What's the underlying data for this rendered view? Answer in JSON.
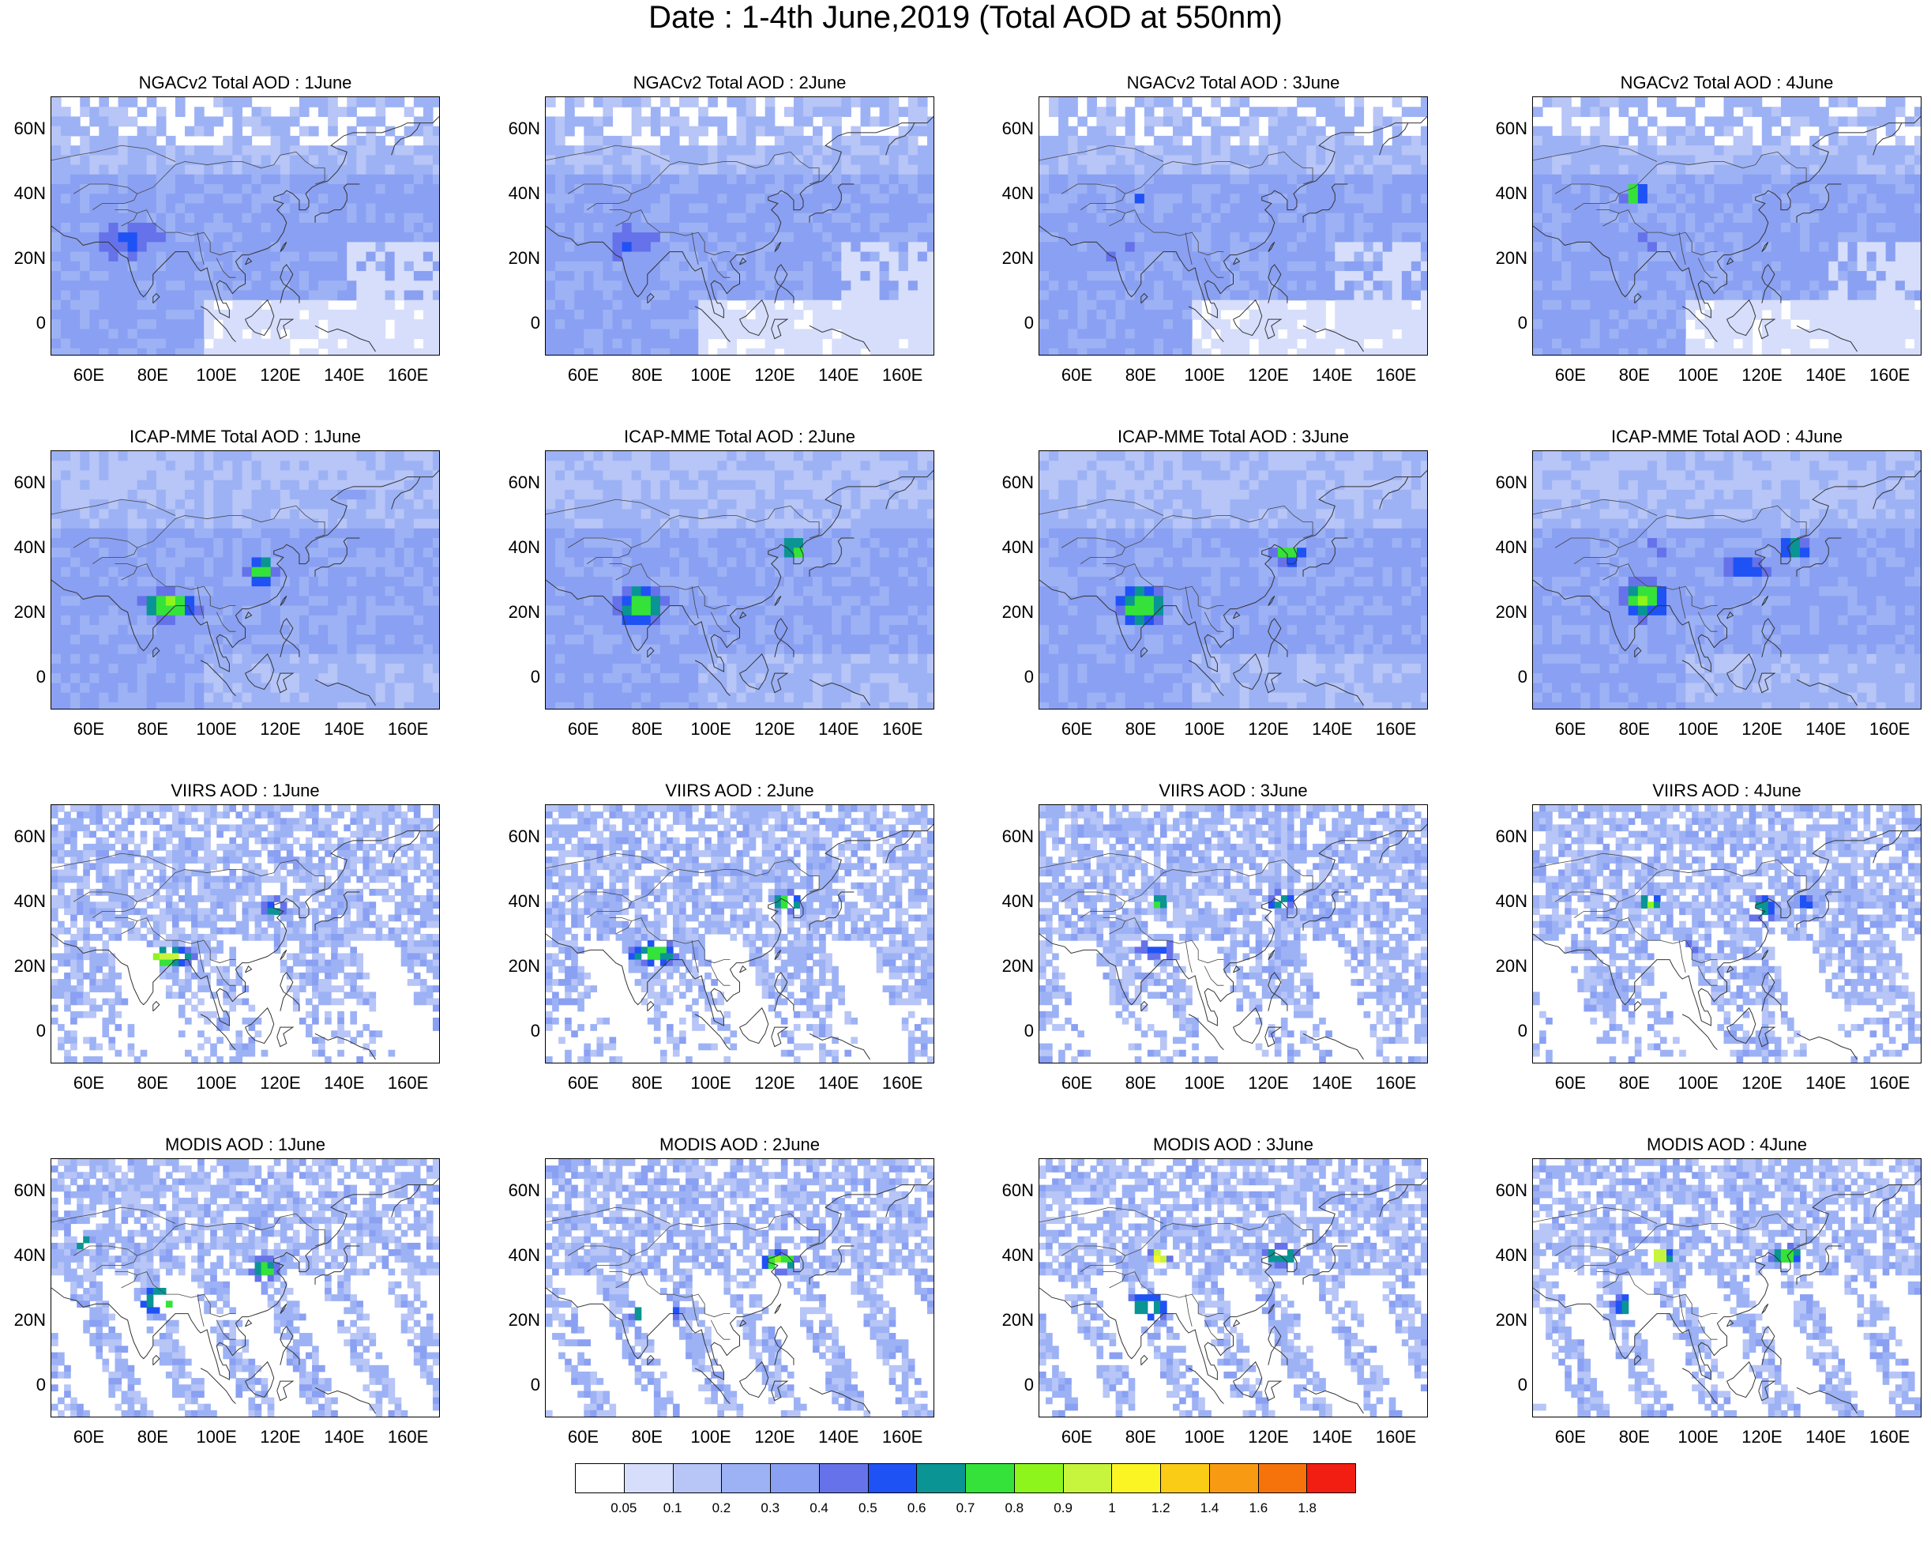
{
  "title": "Date : 1-4th June,2019 (Total AOD at 550nm)",
  "map_panel": {
    "lat_labels": [
      "60N",
      "40N",
      "20N",
      "0"
    ],
    "lon_labels": [
      "60E",
      "80E",
      "100E",
      "120E",
      "140E",
      "160E"
    ],
    "lat_ticks": [
      60,
      40,
      20,
      0
    ],
    "lon_ticks": [
      60,
      80,
      100,
      120,
      140,
      160
    ],
    "lon_range": [
      48,
      170
    ],
    "lat_range": [
      -10,
      70
    ]
  },
  "panels": [
    {
      "title": "NGACv2 Total AOD : 1June",
      "kind": "ngac",
      "day": 1
    },
    {
      "title": "NGACv2 Total AOD : 2June",
      "kind": "ngac",
      "day": 2
    },
    {
      "title": "NGACv2 Total AOD : 3June",
      "kind": "ngac",
      "day": 3
    },
    {
      "title": "NGACv2 Total AOD : 4June",
      "kind": "ngac",
      "day": 4
    },
    {
      "title": "ICAP-MME Total AOD : 1June",
      "kind": "icap",
      "day": 1
    },
    {
      "title": "ICAP-MME Total AOD : 2June",
      "kind": "icap",
      "day": 2
    },
    {
      "title": "ICAP-MME Total AOD : 3June",
      "kind": "icap",
      "day": 3
    },
    {
      "title": "ICAP-MME Total AOD : 4June",
      "kind": "icap",
      "day": 4
    },
    {
      "title": "VIIRS AOD : 1June",
      "kind": "viirs",
      "day": 1
    },
    {
      "title": "VIIRS AOD : 2June",
      "kind": "viirs",
      "day": 2
    },
    {
      "title": "VIIRS AOD : 3June",
      "kind": "viirs",
      "day": 3
    },
    {
      "title": "VIIRS AOD : 4June",
      "kind": "viirs",
      "day": 4
    },
    {
      "title": "MODIS AOD : 1June",
      "kind": "modis",
      "day": 1
    },
    {
      "title": "MODIS AOD : 2June",
      "kind": "modis",
      "day": 2
    },
    {
      "title": "MODIS AOD : 3June",
      "kind": "modis",
      "day": 3
    },
    {
      "title": "MODIS AOD : 4June",
      "kind": "modis",
      "day": 4
    }
  ],
  "colorbar": {
    "labels": [
      "0.05",
      "0.1",
      "0.2",
      "0.3",
      "0.4",
      "0.5",
      "0.6",
      "0.7",
      "0.8",
      "0.9",
      "1",
      "1.2",
      "1.4",
      "1.6",
      "1.8"
    ],
    "colors": [
      "#ffffff",
      "#d6defb",
      "#b7c5f7",
      "#9db2f5",
      "#8aa0f2",
      "#6672e9",
      "#1f52f5",
      "#0a9494",
      "#35e23a",
      "#8df51c",
      "#c7f43c",
      "#fbf524",
      "#fbcc16",
      "#f99b12",
      "#f6720a",
      "#f31e12"
    ]
  }
}
